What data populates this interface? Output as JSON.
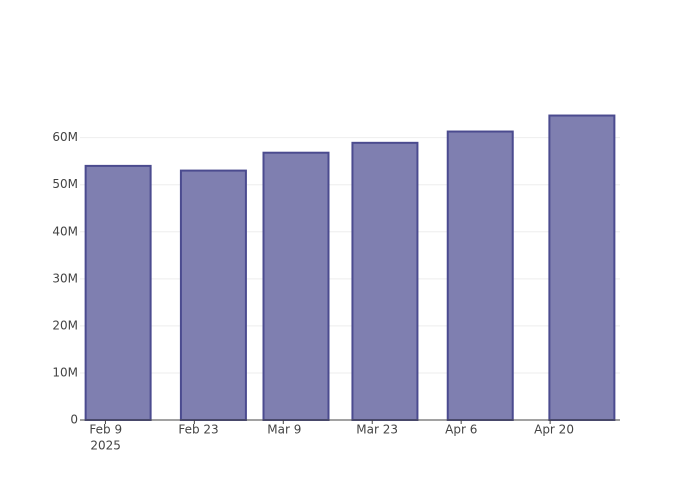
{
  "chart_data": {
    "type": "bar",
    "x": [
      "2025-02-11",
      "2025-02-26",
      "2025-03-11",
      "2025-03-25",
      "2025-04-09",
      "2025-04-25"
    ],
    "values": [
      54000000,
      53000000,
      56800000,
      58900000,
      61300000,
      64700000
    ],
    "color": "#7f7fb0",
    "edge_color": "#4b4b8f",
    "xlim": [
      "2025-02-05",
      "2025-05-01"
    ],
    "xticks": [
      {
        "value": "2025-02-09",
        "label": "Feb 9",
        "sublabel": "2025"
      },
      {
        "value": "2025-02-23",
        "label": "Feb 23"
      },
      {
        "value": "2025-03-09",
        "label": "Mar 9"
      },
      {
        "value": "2025-03-23",
        "label": "Mar 23"
      },
      {
        "value": "2025-04-06",
        "label": "Apr 6"
      },
      {
        "value": "2025-04-20",
        "label": "Apr 20"
      }
    ],
    "ylim": [
      0,
      68000000
    ],
    "yticks": [
      {
        "value": 0,
        "label": "0"
      },
      {
        "value": 10000000,
        "label": "10M"
      },
      {
        "value": 20000000,
        "label": "20M"
      },
      {
        "value": 30000000,
        "label": "30M"
      },
      {
        "value": 40000000,
        "label": "40M"
      },
      {
        "value": 50000000,
        "label": "50M"
      },
      {
        "value": 60000000,
        "label": "60M"
      }
    ],
    "grid": true
  }
}
